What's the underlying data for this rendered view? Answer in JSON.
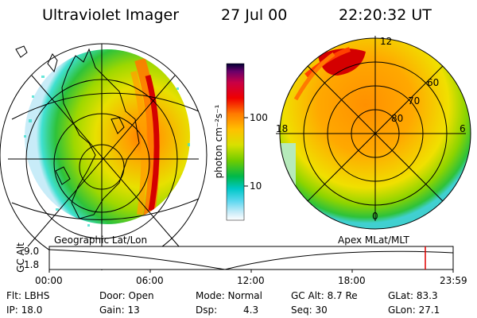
{
  "header": {
    "instrument": "Ultraviolet Imager",
    "date": "27 Jul 00",
    "time": "22:20:32 UT"
  },
  "colors": {
    "green_band": "#2ec23a",
    "orange_core": "#ff9900",
    "red_core": "#d40000",
    "cyan_edge": "#40e0d0"
  },
  "colorbar": {
    "unit_label": "photon cm⁻²s⁻¹",
    "ticks": [
      "100",
      "10"
    ],
    "gradient": [
      "#000033",
      "#6a006a",
      "#c80046",
      "#f00000",
      "#ff7a00",
      "#ffc000",
      "#d8e000",
      "#70cc00",
      "#00b84a",
      "#00c8c8",
      "#60d8f0",
      "#c8ecf8",
      "#ffffff"
    ]
  },
  "left_panel": {
    "label": "Geographic Lat/Lon"
  },
  "right_panel": {
    "label": "Apex MLat/MLT",
    "mlt_labels": {
      "top": "12",
      "left": "18",
      "right": "6",
      "bottom": "0"
    },
    "lat_labels": [
      "60",
      "70",
      "80"
    ]
  },
  "timeline": {
    "ylabel": "GC Alt",
    "y_ticks": [
      "9.0",
      "1.8"
    ],
    "x_ticks": [
      "00:00",
      "06:00",
      "12:00",
      "18:00",
      "23:59"
    ],
    "marker_time": "22:20"
  },
  "info": {
    "flt": "Flt: LBHS",
    "ip": "IP: 18.0",
    "door": "Door: Open",
    "gain": "Gain: 13",
    "mode": "Mode: Normal",
    "dsp_label": "Dsp:",
    "dsp_value": "4.3",
    "gc_alt": "GC Alt: 8.7 Re",
    "seq": "Seq: 30",
    "glat": "GLat: 83.3",
    "glon": "GLon: 27.1"
  }
}
